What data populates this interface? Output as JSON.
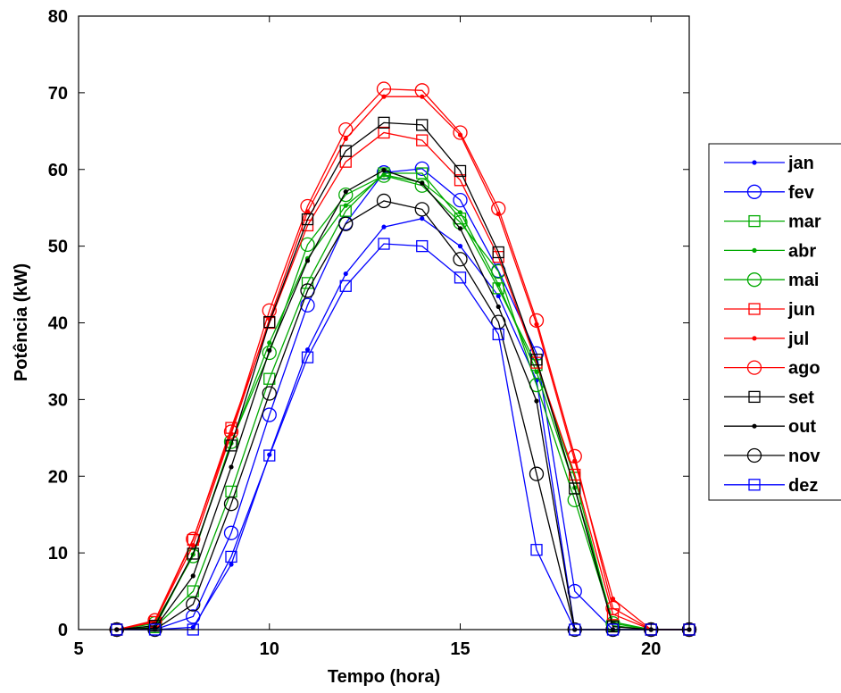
{
  "chart_data": {
    "type": "line",
    "title": "",
    "xlabel": "Tempo (hora)",
    "ylabel": "Potência (kW)",
    "xlim": [
      5,
      21
    ],
    "ylim": [
      0,
      80
    ],
    "xticks": [
      5,
      10,
      15,
      20
    ],
    "yticks": [
      0,
      10,
      20,
      30,
      40,
      50,
      60,
      70,
      80
    ],
    "grid": false,
    "legend_position": "outside-right",
    "x": [
      6,
      7,
      8,
      9,
      10,
      11,
      12,
      13,
      14,
      15,
      16,
      17,
      18,
      19,
      20,
      21
    ],
    "series": [
      {
        "name": "jan",
        "color": "#0000ff",
        "marker": "dot",
        "values": [
          0,
          0,
          0.3,
          8.5,
          22.8,
          36.5,
          46.4,
          52.5,
          53.6,
          50.0,
          43.5,
          32.5,
          0,
          0,
          0,
          0
        ]
      },
      {
        "name": "fev",
        "color": "#0000ff",
        "marker": "circle",
        "values": [
          0,
          0,
          1.7,
          12.6,
          28.0,
          42.3,
          53.0,
          59.6,
          60.1,
          56.0,
          46.8,
          36.0,
          5.0,
          0,
          0,
          0
        ]
      },
      {
        "name": "mar",
        "color": "#00aa00",
        "marker": "square",
        "values": [
          0,
          0.3,
          5.0,
          18.0,
          32.7,
          45.2,
          54.6,
          59.5,
          59.5,
          53.6,
          44.5,
          34.5,
          19.8,
          0.5,
          0,
          0
        ]
      },
      {
        "name": "abr",
        "color": "#00aa00",
        "marker": "dot",
        "values": [
          0,
          0.3,
          9.8,
          24.3,
          37.4,
          48.4,
          55.3,
          59.3,
          58.3,
          54.4,
          45.0,
          33.6,
          18.5,
          1.0,
          0,
          0
        ]
      },
      {
        "name": "mai",
        "color": "#00aa00",
        "marker": "circle",
        "values": [
          0,
          0.8,
          9.6,
          24.5,
          36.1,
          50.2,
          56.7,
          59.2,
          57.9,
          53.1,
          46.7,
          31.9,
          16.9,
          0.8,
          0,
          0
        ]
      },
      {
        "name": "jun",
        "color": "#ff0000",
        "marker": "square",
        "values": [
          0,
          1.0,
          11.7,
          26.3,
          40.0,
          52.7,
          61.0,
          64.8,
          63.8,
          58.6,
          48.6,
          34.8,
          20.2,
          2.0,
          0,
          0
        ]
      },
      {
        "name": "jul",
        "color": "#ff0000",
        "marker": "dot",
        "values": [
          0,
          1.0,
          11.0,
          25.5,
          40.5,
          54.5,
          64.0,
          69.5,
          69.5,
          64.5,
          54.2,
          39.8,
          22.0,
          4.0,
          0,
          0
        ]
      },
      {
        "name": "ago",
        "color": "#ff0000",
        "marker": "circle",
        "values": [
          0,
          1.2,
          11.8,
          25.8,
          41.6,
          55.2,
          65.2,
          70.5,
          70.3,
          64.8,
          54.9,
          40.3,
          22.6,
          2.8,
          0,
          0
        ]
      },
      {
        "name": "set",
        "color": "#000000",
        "marker": "square",
        "values": [
          0,
          0.5,
          9.9,
          24.0,
          40.1,
          53.5,
          62.4,
          66.1,
          65.8,
          59.8,
          49.2,
          35.2,
          18.4,
          0.4,
          0,
          0
        ]
      },
      {
        "name": "out",
        "color": "#000000",
        "marker": "dot",
        "values": [
          0,
          0.2,
          7.0,
          21.2,
          36.4,
          48.1,
          57.1,
          59.9,
          58.2,
          52.3,
          42.1,
          29.8,
          0,
          0,
          0,
          0
        ]
      },
      {
        "name": "nov",
        "color": "#000000",
        "marker": "circle",
        "values": [
          0,
          0,
          3.3,
          16.4,
          30.8,
          44.2,
          52.9,
          55.9,
          54.8,
          48.3,
          40.1,
          20.3,
          0,
          0,
          0,
          0
        ]
      },
      {
        "name": "dez",
        "color": "#0000ff",
        "marker": "square",
        "values": [
          0,
          0,
          0,
          9.5,
          22.7,
          35.5,
          44.8,
          50.3,
          50.0,
          45.9,
          38.5,
          10.4,
          0,
          0,
          0,
          0
        ]
      }
    ]
  }
}
